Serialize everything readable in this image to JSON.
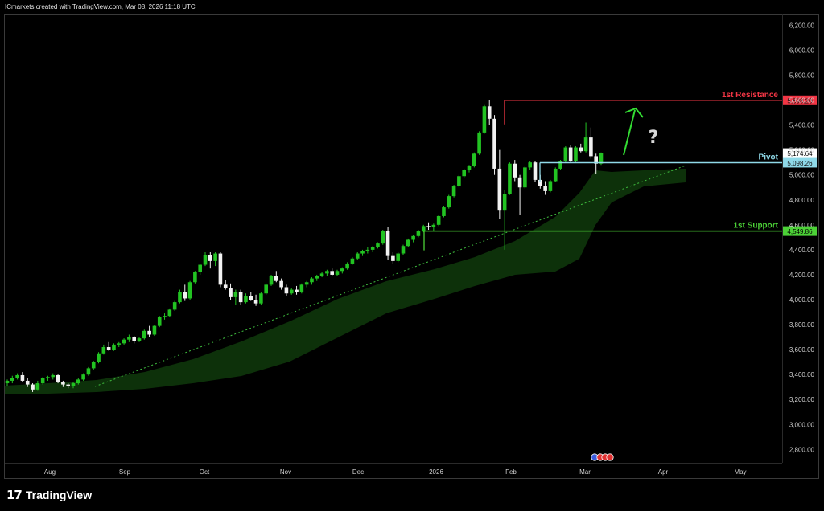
{
  "header": {
    "credit": "ICmarkets created with TradingView.com, Mar 08, 2026 11:18 UTC"
  },
  "footer": {
    "brand": "TradingView",
    "logo_glyph": "17"
  },
  "chart_data": {
    "type": "candlestick",
    "y_ticks": [
      "2,800.00",
      "3,000.00",
      "3,200.00",
      "3,400.00",
      "3,600.00",
      "3,800.00",
      "4,000.00",
      "4,200.00",
      "4,400.00",
      "4,600.00",
      "4,800.00",
      "5,000.00",
      "5,200.00",
      "5,400.00",
      "5,600.00",
      "5,800.00",
      "6,000.00",
      "6,200.00"
    ],
    "y_tick_values": [
      2800,
      3000,
      3200,
      3400,
      3600,
      3800,
      4000,
      4200,
      4400,
      4600,
      4800,
      5000,
      5200,
      5400,
      5600,
      5800,
      6000,
      6200
    ],
    "ylim": [
      2700,
      6300
    ],
    "x_labels": [
      "Aug",
      "Sep",
      "Oct",
      "Nov",
      "Dec",
      "2026",
      "Feb",
      "Mar",
      "Apr",
      "May"
    ],
    "levels": [
      {
        "name": "1st Resistance",
        "value": 5598.2,
        "price_label": "5,598.20",
        "color": "#f23645"
      },
      {
        "name": "Pivot",
        "value": 5098.26,
        "price_label": "5,098.26",
        "color": "#8fd9e8"
      },
      {
        "name": "1st Support",
        "value": 4549.86,
        "price_label": "4,549.86",
        "color": "#4cd137"
      }
    ],
    "last_price": {
      "value": 5174.64,
      "label": "5,174.64"
    },
    "annotation": "?",
    "candles": [
      [
        3330,
        3360,
        3310,
        3350
      ],
      [
        3350,
        3390,
        3330,
        3370
      ],
      [
        3370,
        3410,
        3360,
        3395
      ],
      [
        3395,
        3420,
        3340,
        3350
      ],
      [
        3350,
        3370,
        3300,
        3320
      ],
      [
        3320,
        3330,
        3260,
        3280
      ],
      [
        3280,
        3350,
        3270,
        3330
      ],
      [
        3330,
        3380,
        3320,
        3370
      ],
      [
        3370,
        3390,
        3350,
        3380
      ],
      [
        3380,
        3410,
        3360,
        3395
      ],
      [
        3395,
        3400,
        3330,
        3340
      ],
      [
        3340,
        3350,
        3300,
        3320
      ],
      [
        3320,
        3330,
        3290,
        3310
      ],
      [
        3310,
        3340,
        3290,
        3330
      ],
      [
        3330,
        3370,
        3320,
        3360
      ],
      [
        3360,
        3410,
        3350,
        3400
      ],
      [
        3400,
        3460,
        3390,
        3450
      ],
      [
        3450,
        3510,
        3440,
        3500
      ],
      [
        3500,
        3580,
        3490,
        3570
      ],
      [
        3570,
        3640,
        3560,
        3620
      ],
      [
        3620,
        3660,
        3590,
        3600
      ],
      [
        3600,
        3650,
        3590,
        3640
      ],
      [
        3640,
        3660,
        3620,
        3650
      ],
      [
        3650,
        3690,
        3640,
        3680
      ],
      [
        3680,
        3720,
        3660,
        3700
      ],
      [
        3700,
        3710,
        3650,
        3670
      ],
      [
        3670,
        3700,
        3660,
        3690
      ],
      [
        3690,
        3760,
        3680,
        3750
      ],
      [
        3750,
        3790,
        3700,
        3720
      ],
      [
        3720,
        3800,
        3710,
        3790
      ],
      [
        3790,
        3870,
        3780,
        3860
      ],
      [
        3860,
        3890,
        3840,
        3870
      ],
      [
        3870,
        3930,
        3860,
        3920
      ],
      [
        3920,
        3990,
        3910,
        3980
      ],
      [
        3980,
        4080,
        3970,
        4060
      ],
      [
        4060,
        4120,
        3990,
        4010
      ],
      [
        4010,
        4150,
        4000,
        4140
      ],
      [
        4140,
        4230,
        4130,
        4220
      ],
      [
        4220,
        4290,
        4200,
        4280
      ],
      [
        4280,
        4380,
        4270,
        4360
      ],
      [
        4360,
        4380,
        4250,
        4310
      ],
      [
        4310,
        4380,
        4270,
        4370
      ],
      [
        4370,
        4380,
        4100,
        4120
      ],
      [
        4120,
        4160,
        4080,
        4090
      ],
      [
        4090,
        4130,
        4000,
        4020
      ],
      [
        4020,
        4080,
        3960,
        4060
      ],
      [
        4060,
        4080,
        3960,
        3980
      ],
      [
        3980,
        4050,
        3970,
        4030
      ],
      [
        4030,
        4060,
        3990,
        4000
      ],
      [
        4000,
        4040,
        3950,
        3970
      ],
      [
        3970,
        4060,
        3960,
        4050
      ],
      [
        4050,
        4130,
        4040,
        4120
      ],
      [
        4120,
        4200,
        4110,
        4190
      ],
      [
        4190,
        4230,
        4140,
        4150
      ],
      [
        4150,
        4170,
        4080,
        4100
      ],
      [
        4100,
        4120,
        4030,
        4050
      ],
      [
        4050,
        4090,
        4040,
        4080
      ],
      [
        4080,
        4110,
        4040,
        4060
      ],
      [
        4060,
        4130,
        4050,
        4120
      ],
      [
        4120,
        4150,
        4100,
        4140
      ],
      [
        4140,
        4180,
        4120,
        4170
      ],
      [
        4170,
        4200,
        4150,
        4190
      ],
      [
        4190,
        4220,
        4180,
        4210
      ],
      [
        4210,
        4240,
        4190,
        4230
      ],
      [
        4230,
        4250,
        4190,
        4200
      ],
      [
        4200,
        4240,
        4190,
        4230
      ],
      [
        4230,
        4260,
        4210,
        4250
      ],
      [
        4250,
        4300,
        4240,
        4290
      ],
      [
        4290,
        4340,
        4280,
        4330
      ],
      [
        4330,
        4380,
        4320,
        4370
      ],
      [
        4370,
        4400,
        4350,
        4390
      ],
      [
        4390,
        4420,
        4370,
        4400
      ],
      [
        4400,
        4430,
        4380,
        4420
      ],
      [
        4420,
        4460,
        4410,
        4450
      ],
      [
        4450,
        4560,
        4440,
        4550
      ],
      [
        4550,
        4580,
        4320,
        4350
      ],
      [
        4350,
        4380,
        4290,
        4310
      ],
      [
        4310,
        4380,
        4300,
        4370
      ],
      [
        4370,
        4440,
        4360,
        4430
      ],
      [
        4430,
        4490,
        4420,
        4480
      ],
      [
        4480,
        4520,
        4460,
        4510
      ],
      [
        4510,
        4560,
        4500,
        4550
      ],
      [
        4550,
        4600,
        4540,
        4590
      ],
      [
        4590,
        4620,
        4560,
        4580
      ],
      [
        4580,
        4610,
        4550,
        4600
      ],
      [
        4600,
        4680,
        4590,
        4670
      ],
      [
        4670,
        4750,
        4660,
        4740
      ],
      [
        4740,
        4840,
        4730,
        4830
      ],
      [
        4830,
        4920,
        4820,
        4910
      ],
      [
        4910,
        5000,
        4900,
        4990
      ],
      [
        4990,
        5050,
        4980,
        5040
      ],
      [
        5040,
        5080,
        5020,
        5070
      ],
      [
        5070,
        5180,
        5060,
        5170
      ],
      [
        5170,
        5350,
        5160,
        5340
      ],
      [
        5340,
        5560,
        5330,
        5550
      ],
      [
        5550,
        5598,
        5400,
        5450
      ],
      [
        5450,
        5480,
        5000,
        5050
      ],
      [
        5050,
        5200,
        4650,
        4720
      ],
      [
        4720,
        4880,
        4400,
        4850
      ],
      [
        4850,
        5100,
        4840,
        5090
      ],
      [
        5090,
        5120,
        4950,
        4980
      ],
      [
        4980,
        5000,
        4680,
        4900
      ],
      [
        4900,
        5070,
        4890,
        5060
      ],
      [
        5060,
        5110,
        5040,
        5100
      ],
      [
        5100,
        5110,
        4940,
        4960
      ],
      [
        4960,
        5000,
        4890,
        4910
      ],
      [
        4910,
        4950,
        4840,
        4870
      ],
      [
        4870,
        4960,
        4860,
        4950
      ],
      [
        4950,
        5060,
        4940,
        5050
      ],
      [
        5050,
        5120,
        5040,
        5110
      ],
      [
        5110,
        5230,
        5100,
        5220
      ],
      [
        5220,
        5240,
        5100,
        5110
      ],
      [
        5110,
        5230,
        5100,
        5220
      ],
      [
        5220,
        5250,
        5180,
        5190
      ],
      [
        5190,
        5420,
        5180,
        5300
      ],
      [
        5300,
        5380,
        5130,
        5150
      ],
      [
        5150,
        5170,
        5010,
        5090
      ],
      [
        5090,
        5180,
        5080,
        5174.64
      ]
    ]
  }
}
